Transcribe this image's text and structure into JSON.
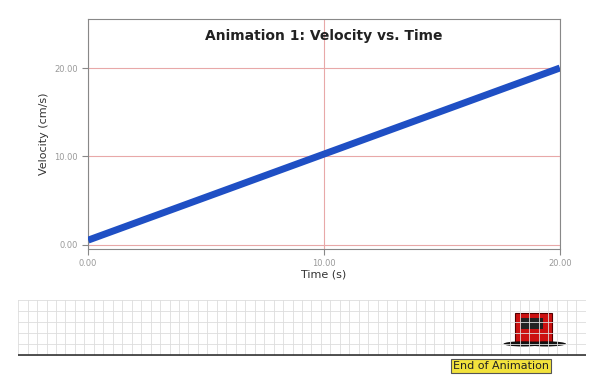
{
  "chart_data": {
    "type": "line",
    "title": "Animation 1: Velocity vs. Time",
    "x_label": "Time (s)",
    "y_label": "Velocity (cm/s)",
    "x": [
      0,
      20
    ],
    "values": [
      0.5,
      20
    ],
    "color": "#1f4fc4",
    "xlim": [
      0,
      20
    ],
    "ylim": [
      -0.5,
      25.5
    ],
    "xticks": [
      {
        "value": 0,
        "label": "0.00"
      },
      {
        "value": 10,
        "label": "10.00"
      },
      {
        "value": 20,
        "label": "20.00"
      }
    ],
    "yticks": [
      {
        "value": 0,
        "label": "0.00"
      },
      {
        "value": 10,
        "label": "10.00"
      },
      {
        "value": 20,
        "label": "20.00"
      }
    ],
    "grid": true,
    "annotations": [
      "End of Animation"
    ]
  }
}
